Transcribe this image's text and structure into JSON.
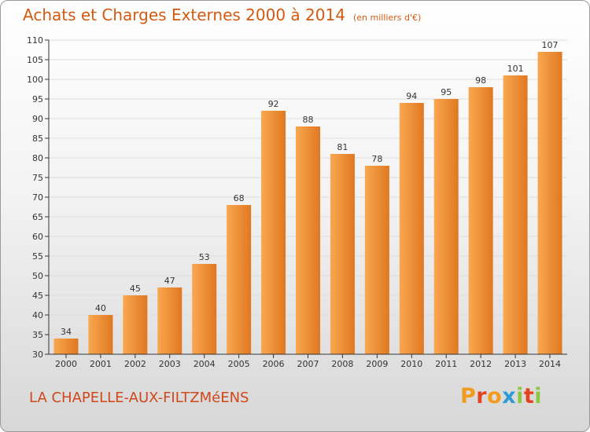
{
  "page": {
    "title": "Achats et Charges Externes 2000 à 2014",
    "unit_note": "(en milliers d'€)",
    "commune": "LA CHAPELLE-AUX-FILTZMéENS",
    "brand": "Proxiti"
  },
  "colors": {
    "title": "#d25a10",
    "bar_light": "#f8a850",
    "bar_dark": "#e07820",
    "grid": "#dddddd",
    "axis": "#333333",
    "brand_letters": [
      "#f29c1f",
      "#e3431f",
      "#f29c1f",
      "#2f9bd6",
      "#8dc63f",
      "#e3431f",
      "#8dc63f"
    ]
  },
  "chart_data": {
    "type": "bar",
    "title": "Achats et Charges Externes 2000 à 2014",
    "subtitle": "(en milliers d'€)",
    "categories": [
      "2000",
      "2001",
      "2002",
      "2003",
      "2004",
      "2005",
      "2006",
      "2007",
      "2008",
      "2009",
      "2010",
      "2011",
      "2012",
      "2013",
      "2014"
    ],
    "values": [
      34,
      40,
      45,
      47,
      53,
      68,
      92,
      88,
      81,
      78,
      94,
      95,
      98,
      101,
      107
    ],
    "ylim": [
      30,
      110
    ],
    "ytick_step": 5,
    "grid": true,
    "legend": "none",
    "xlabel": "",
    "ylabel": ""
  }
}
